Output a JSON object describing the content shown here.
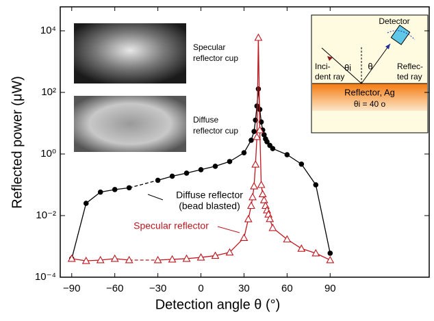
{
  "chart_data": {
    "type": "line",
    "xlabel": "Detection angle  θ  (°)",
    "ylabel": "Reflected power  (μW)",
    "xlim": [
      -98,
      159
    ],
    "ylim": [
      0.0001,
      60000
    ],
    "ylog": true,
    "xticks": [
      {
        "value": -90,
        "label": "−90"
      },
      {
        "value": -60,
        "label": "−60"
      },
      {
        "value": -30,
        "label": "−30"
      },
      0,
      30,
      60,
      90
    ],
    "yticks": [
      {
        "value": 0.0001,
        "label": "10⁻⁴"
      },
      {
        "value": 0.01,
        "label": "10⁻²"
      },
      {
        "value": 1,
        "label": "10⁰"
      },
      {
        "value": 100,
        "label": "10²"
      },
      {
        "value": 10000,
        "label": "10⁴"
      }
    ],
    "series": [
      {
        "name": "Diffuse reflector",
        "marker": "circle",
        "color": "#000000",
        "x": [
          -90,
          -80,
          -70,
          -60,
          -50,
          -30,
          -20,
          -10,
          0,
          10,
          20,
          30,
          35,
          37,
          38,
          39,
          40,
          41,
          42,
          43,
          44,
          45,
          46,
          48,
          50,
          60,
          70,
          80,
          90
        ],
        "values": [
          0.0004,
          0.025,
          0.058,
          0.07,
          0.08,
          0.14,
          0.19,
          0.24,
          0.31,
          0.4,
          0.57,
          1.1,
          2.8,
          5.4,
          12.6,
          36,
          130,
          28,
          11,
          6,
          4.2,
          3.1,
          2.5,
          1.9,
          1.5,
          0.95,
          0.47,
          0.1,
          0.0006
        ]
      },
      {
        "name": "Specular reflector",
        "marker": "triangle",
        "color": "#c0141c",
        "x": [
          -90,
          -80,
          -70,
          -60,
          -50,
          -30,
          -20,
          -10,
          0,
          10,
          20,
          30,
          33,
          35,
          36,
          37,
          38,
          39,
          40,
          41,
          42,
          43,
          44,
          45,
          46,
          47,
          48,
          50,
          60,
          70,
          80,
          90
        ],
        "values": [
          0.0004,
          0.00034,
          0.00036,
          0.0004,
          0.00036,
          0.00036,
          0.00038,
          0.0004,
          0.00044,
          0.0005,
          0.00064,
          0.0019,
          0.0077,
          0.021,
          0.04,
          0.09,
          0.46,
          3.6,
          6000,
          6,
          0.1,
          0.05,
          0.032,
          0.021,
          0.015,
          0.011,
          0.0078,
          0.004,
          0.0017,
          0.00085,
          0.0006,
          0.00036
        ]
      }
    ],
    "annotations": {
      "diffuse": [
        "Diffuse reflector",
        "(bead blasted)"
      ],
      "specular": "Specular reflector"
    },
    "photo_labels": {
      "specular": [
        "Specular",
        "reflector cup"
      ],
      "diffuse": [
        "Diffuse",
        "reflector cup"
      ]
    },
    "inset": {
      "detector": "Detector",
      "theta_i": "θi",
      "theta": "θ",
      "incident": [
        "Inci-",
        "dent ray"
      ],
      "reflected": [
        "Reflec-",
        "ted ray"
      ],
      "reflector": "Reflector, Ag",
      "angle": "θi = 40 o"
    }
  }
}
